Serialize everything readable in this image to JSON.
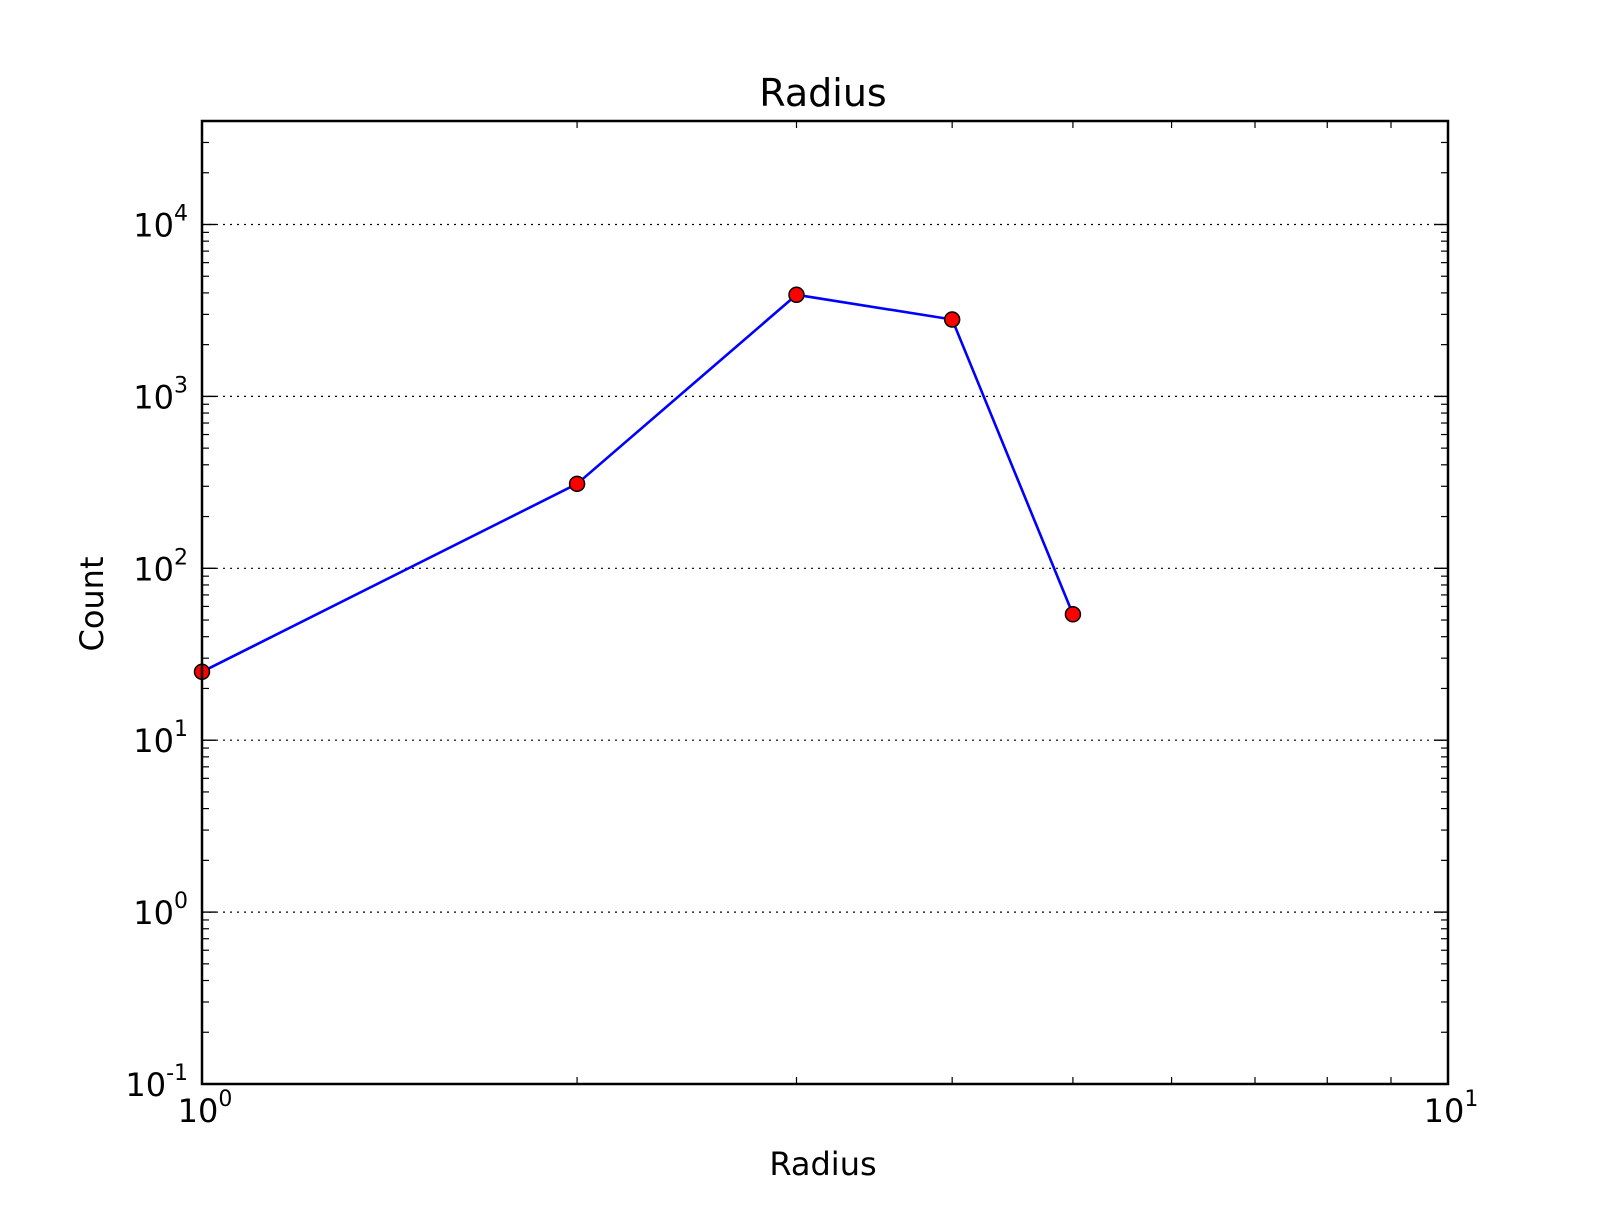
{
  "chart_data": {
    "type": "line",
    "title": "Radius",
    "xlabel": "Radius",
    "ylabel": "Count",
    "xscale": "log",
    "yscale": "log",
    "xlim": [
      1,
      10
    ],
    "ylim": [
      0.1,
      40000
    ],
    "grid": "horizontal dotted at major y ticks",
    "x_ticks": [
      {
        "value": 1,
        "base": "10",
        "exp": "0"
      },
      {
        "value": 10,
        "base": "10",
        "exp": "1"
      }
    ],
    "y_ticks": [
      {
        "value": 0.1,
        "base": "10",
        "exp": "-1"
      },
      {
        "value": 1,
        "base": "10",
        "exp": "0"
      },
      {
        "value": 10,
        "base": "10",
        "exp": "1"
      },
      {
        "value": 100,
        "base": "10",
        "exp": "2"
      },
      {
        "value": 1000,
        "base": "10",
        "exp": "3"
      },
      {
        "value": 10000,
        "base": "10",
        "exp": "4"
      }
    ],
    "series": [
      {
        "x": [
          1,
          2,
          3,
          4,
          5
        ],
        "y": [
          25,
          310,
          3900,
          2800,
          54
        ],
        "line_color": "#0000ff",
        "marker_color": "#ff0000",
        "marker_edge": "#000000"
      }
    ]
  }
}
